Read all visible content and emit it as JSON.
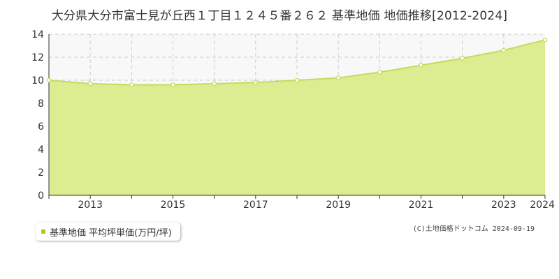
{
  "chart_data": {
    "type": "area",
    "title": "大分県大分市富士見が丘西１丁目１２４５番２６２ 基準地価 地価推移[2012-2024]",
    "x": [
      2012,
      2013,
      2014,
      2015,
      2016,
      2017,
      2018,
      2019,
      2020,
      2021,
      2022,
      2023,
      2024
    ],
    "x_ticks": [
      "2013",
      "2015",
      "2017",
      "2019",
      "2021",
      "2023",
      "2024"
    ],
    "y_ticks": [
      "0",
      "2",
      "4",
      "6",
      "8",
      "10",
      "12",
      "14"
    ],
    "ylim": [
      0,
      14
    ],
    "series": [
      {
        "name": "基準地価 平均坪単価(万円/坪)",
        "values": [
          10.0,
          9.7,
          9.6,
          9.6,
          9.7,
          9.8,
          10.0,
          10.2,
          10.7,
          11.3,
          11.9,
          12.6,
          13.5
        ]
      }
    ],
    "grid": true,
    "legend": "bottom-left"
  },
  "colors": {
    "fill": "#dbec91",
    "line": "#c2dc5c",
    "marker_fill": "#ffffff",
    "grid": "#cccccc",
    "legend_swatch": "#a5cc2e",
    "plot_background": "#f8f8f8"
  },
  "legend_label": "基準地価 平均坪単価(万円/坪)",
  "credit": "(C)土地価格ドットコム 2024-09-19"
}
